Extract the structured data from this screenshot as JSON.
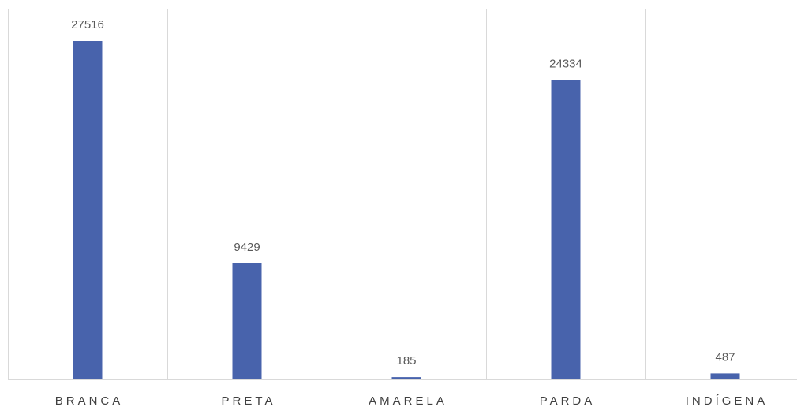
{
  "chart_data": {
    "type": "bar",
    "title": "",
    "xlabel": "",
    "ylabel": "",
    "categories": [
      "BRANCA",
      "PRETA",
      "AMARELA",
      "PARDA",
      "INDÍGENA"
    ],
    "values": [
      27516,
      9429,
      185,
      24334,
      487
    ],
    "ylim": [
      0,
      30000
    ],
    "grid": "vertical separators",
    "bar_color": "#4863ac",
    "data_labels": [
      "27516",
      "9429",
      "185",
      "24334",
      "487"
    ]
  }
}
